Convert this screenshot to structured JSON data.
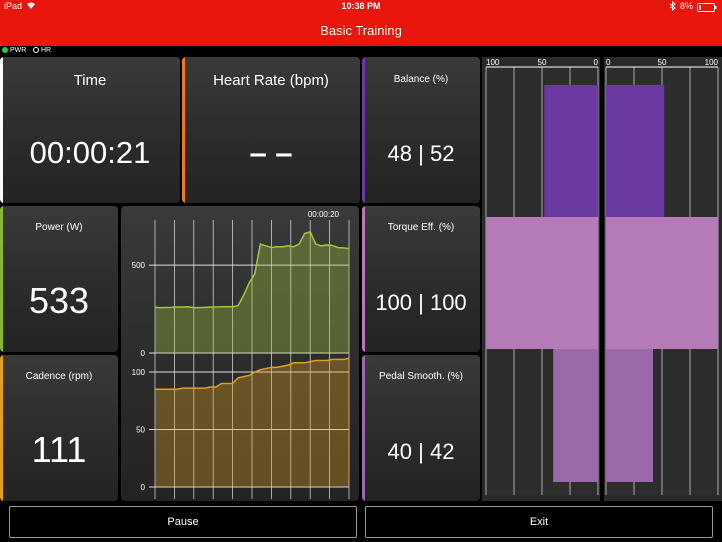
{
  "status_bar": {
    "device": "iPad",
    "time": "10:38 PM",
    "battery": "8%"
  },
  "title": "Basic Training",
  "sensors": [
    {
      "label": "PWR",
      "connected": true
    },
    {
      "label": "HR",
      "connected": false
    }
  ],
  "tiles": {
    "time": {
      "label": "Time",
      "value": "00:00:21"
    },
    "heart_rate": {
      "label": "Heart Rate (bpm)",
      "value": "– –"
    },
    "balance": {
      "label": "Balance (%)",
      "value": "48 | 52"
    },
    "power": {
      "label": "Power (W)",
      "value": "533"
    },
    "cadence": {
      "label": "Cadence (rpm)",
      "value": "111"
    },
    "torque": {
      "label": "Torque Eff. (%)",
      "value": "100 | 100"
    },
    "smoothness": {
      "label": "Pedal Smooth. (%)",
      "value": "40 | 42"
    }
  },
  "chart_data": [
    {
      "type": "area",
      "elapsed_label": "00:00:20",
      "ytick_labels": [
        "500",
        "0"
      ],
      "ylim": [
        0,
        700
      ],
      "series": [
        {
          "color": "#a4c639",
          "values": [
            260,
            258,
            259,
            260,
            262,
            262,
            263,
            258,
            258,
            260,
            262,
            262,
            263,
            264,
            263,
            270,
            330,
            400,
            450,
            620,
            610,
            600,
            605,
            605,
            610,
            605,
            620,
            680,
            690,
            620,
            610,
            615,
            612,
            600,
            598,
            595
          ]
        }
      ]
    },
    {
      "type": "area",
      "ytick_labels": [
        "100",
        "50",
        "0"
      ],
      "ylim": [
        0,
        120
      ],
      "series": [
        {
          "color": "#e0a020",
          "values": [
            85,
            85,
            85,
            85,
            85,
            86,
            86,
            86,
            86,
            86,
            87,
            87,
            90,
            90,
            90,
            95,
            96,
            97,
            100,
            102,
            103,
            104,
            104,
            105,
            106,
            108,
            108,
            108,
            109,
            110,
            110,
            110,
            111,
            111,
            111,
            112
          ]
        }
      ]
    },
    {
      "type": "bar",
      "orientation": "horizontal",
      "side": "left",
      "xtick_labels": [
        "100",
        "50",
        "0"
      ],
      "xlim": [
        0,
        100
      ],
      "bars": [
        {
          "metric": "balance",
          "value": 48,
          "color": "#6b3aa0"
        },
        {
          "metric": "torque_effectiveness",
          "value": 100,
          "color": "#b57bb8"
        },
        {
          "metric": "pedal_smoothness",
          "value": 40,
          "color": "#9a6aaa"
        }
      ]
    },
    {
      "type": "bar",
      "orientation": "horizontal",
      "side": "right",
      "xtick_labels": [
        "0",
        "50",
        "100"
      ],
      "xlim": [
        0,
        100
      ],
      "bars": [
        {
          "metric": "balance",
          "value": 52,
          "color": "#6b3aa0"
        },
        {
          "metric": "torque_effectiveness",
          "value": 100,
          "color": "#b57bb8"
        },
        {
          "metric": "pedal_smoothness",
          "value": 42,
          "color": "#9a6aaa"
        }
      ]
    }
  ],
  "buttons": {
    "pause": "Pause",
    "exit": "Exit"
  }
}
